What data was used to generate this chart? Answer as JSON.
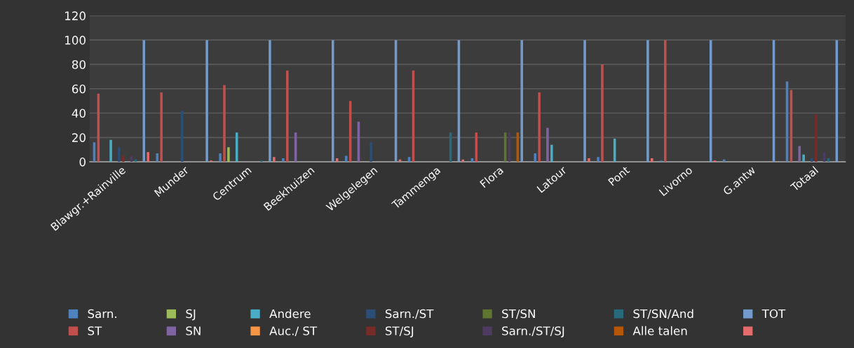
{
  "chart_data": {
    "type": "bar",
    "categories": [
      "Blawgr.+Rainville",
      "Munder",
      "Centrum",
      "Beekhuizen",
      "Welgelegen",
      "Tammenga",
      "Flora",
      "Latour",
      "Pont",
      "Livorno",
      "G.antw",
      "Totaal"
    ],
    "series": [
      {
        "name": "Sarn.",
        "color": "#4f81bd",
        "values": [
          16,
          7,
          7,
          3,
          5,
          4,
          3,
          7,
          4,
          1,
          2,
          66
        ]
      },
      {
        "name": "ST",
        "color": "#c0504d",
        "values": [
          56,
          57,
          63,
          75,
          50,
          75,
          24,
          57,
          80,
          100,
          0,
          59
        ]
      },
      {
        "name": "SJ",
        "color": "#9bbb59",
        "values": [
          0,
          0,
          12,
          0,
          0,
          0,
          0,
          0,
          0,
          0,
          0,
          0
        ]
      },
      {
        "name": "SN",
        "color": "#8064a2",
        "values": [
          0,
          0,
          0,
          24,
          33,
          0,
          0,
          28,
          0,
          0,
          0,
          13
        ]
      },
      {
        "name": "Andere",
        "color": "#4bacc6",
        "values": [
          18,
          0,
          24,
          0,
          0,
          0,
          0,
          14,
          19,
          0,
          0,
          6
        ]
      },
      {
        "name": "Auc./ ST",
        "color": "#f79646",
        "values": [
          0,
          0,
          0,
          0,
          0,
          0,
          0,
          0,
          0,
          0,
          0,
          0
        ]
      },
      {
        "name": "Sarn./ST",
        "color": "#2c4d75",
        "values": [
          12,
          42,
          0,
          0,
          16,
          0,
          0,
          0,
          0,
          0,
          0,
          3
        ]
      },
      {
        "name": "ST/SJ",
        "color": "#772c2a",
        "values": [
          5,
          0,
          0,
          0,
          0,
          0,
          0,
          0,
          0,
          0,
          0,
          39
        ]
      },
      {
        "name": "ST/SN",
        "color": "#5f7530",
        "values": [
          0,
          0,
          0,
          0,
          0,
          0,
          24,
          0,
          0,
          0,
          0,
          0
        ]
      },
      {
        "name": "Sarn./ST/SJ",
        "color": "#4d3b62",
        "values": [
          5,
          0,
          0,
          0,
          0,
          0,
          24,
          0,
          0,
          0,
          0,
          8
        ]
      },
      {
        "name": "ST/SN/And",
        "color": "#276a7c",
        "values": [
          2,
          0,
          1,
          0,
          0,
          24,
          0,
          0,
          0,
          0,
          0,
          3
        ]
      },
      {
        "name": "Alle talen",
        "color": "#b65708",
        "values": [
          0,
          0,
          0,
          0,
          0,
          0,
          24,
          0,
          0,
          0,
          0,
          0
        ]
      },
      {
        "name": "TOT",
        "color": "#729aca",
        "values": [
          100,
          100,
          100,
          100,
          100,
          100,
          100,
          100,
          100,
          100,
          100,
          100
        ]
      },
      {
        "color": "#e46c6c",
        "values": [
          8,
          1,
          4,
          3,
          2,
          2,
          0,
          3,
          3,
          1,
          0,
          0
        ]
      }
    ],
    "ylim": [
      0,
      120
    ],
    "yticks": [
      0,
      20,
      40,
      60,
      80,
      100,
      120
    ],
    "grid": "y",
    "legend": "bottom"
  }
}
